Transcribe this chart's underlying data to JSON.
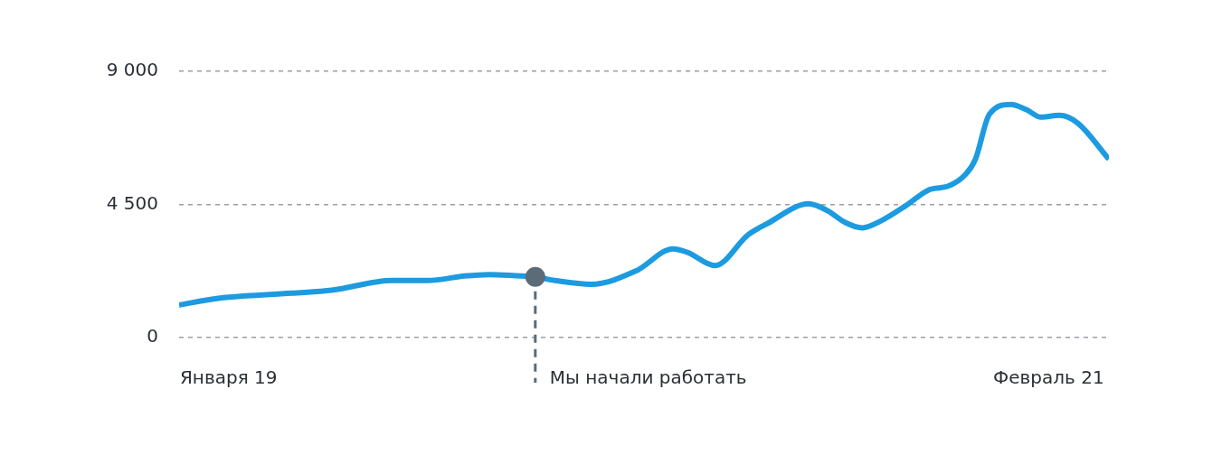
{
  "chart_data": {
    "type": "line",
    "x": [
      "2018-11-16",
      "2018-12-21",
      "2019-03-01",
      "2019-04-07",
      "2019-06-02",
      "2019-07-05",
      "2019-08-08",
      "2019-08-31",
      "2019-09-25",
      "2019-10-13",
      "2019-10-31",
      "2019-12-04",
      "2020-01-15",
      "2020-02-18",
      "2020-03-03",
      "2020-03-28",
      "2020-04-28",
      "2020-05-15",
      "2020-06-23",
      "2020-07-10",
      "2020-07-27",
      "2020-08-12",
      "2020-08-29",
      "2020-09-21",
      "2020-10-14",
      "2020-10-30",
      "2020-11-16",
      "2020-11-25",
      "2020-12-08",
      "2020-12-28",
      "2021-01-11",
      "2021-01-25",
      "2021-02-11",
      "2021-02-28",
      "2021-03-29"
    ],
    "series": [
      {
        "color": "#1c9be0",
        "values": [
          1100,
          1320,
          1500,
          1600,
          1930,
          1930,
          2080,
          2130,
          2090,
          2050,
          1930,
          1800,
          2260,
          3000,
          2870,
          2430,
          3480,
          3840,
          4520,
          4300,
          3890,
          3710,
          3940,
          4450,
          5010,
          5110,
          5520,
          6030,
          7550,
          7880,
          7710,
          7450,
          7510,
          7250,
          6030
        ]
      },
      {
        "type": "scatter",
        "color": "#5b6b78",
        "x": [
          "2019-10-13"
        ],
        "values": [
          2050
        ]
      }
    ],
    "xlim": [
      "2018-11-16",
      "2021-03-29"
    ],
    "xticks": [
      {
        "value": "2019-01-01",
        "label": "Января 19"
      },
      {
        "value": "2021-02-01",
        "label": "Февраль 21"
      }
    ],
    "ylim": [
      0,
      9000
    ],
    "yticks": [
      0,
      {
        "value": 4500,
        "label": "4 500"
      },
      {
        "value": 9000,
        "label": "9 000"
      }
    ],
    "grid": "y",
    "ref_lines": [
      {
        "axis": "x",
        "value": "2019-10-13",
        "label": "Мы начали работать",
        "color": "#5b6b78",
        "line_style": "dashed"
      }
    ]
  }
}
